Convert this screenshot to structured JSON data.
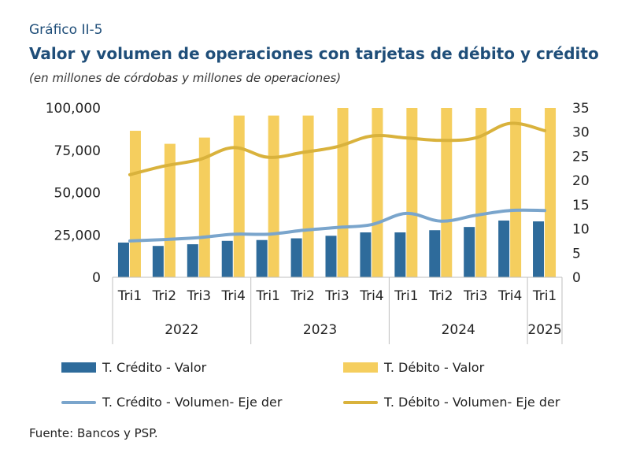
{
  "figure": {
    "label": "Gráfico II-5",
    "title": "Valor y volumen de operaciones con tarjetas de débito y crédito",
    "subtitle": "(en millones de córdobas y millones de operaciones)",
    "source": "Fuente: Bancos y PSP."
  },
  "colors": {
    "credito_valor": "#2e6b9b",
    "debito_valor": "#f5ce5e",
    "credito_volumen": "#7aa5cc",
    "debito_volumen": "#d9b23c"
  },
  "chart_data": {
    "type": "bar",
    "categories": [
      "Tri1",
      "Tri2",
      "Tri3",
      "Tri4",
      "Tri1",
      "Tri2",
      "Tri3",
      "Tri4",
      "Tri1",
      "Tri2",
      "Tri3",
      "Tri4",
      "Tri1"
    ],
    "years": [
      {
        "label": "2022",
        "start": 0,
        "count": 4
      },
      {
        "label": "2023",
        "start": 4,
        "count": 4
      },
      {
        "label": "2024",
        "start": 8,
        "count": 4
      },
      {
        "label": "2025",
        "start": 12,
        "count": 1
      }
    ],
    "y_left": {
      "ylim": [
        0,
        100000
      ],
      "ticks": [
        "0",
        "25,000",
        "50,000",
        "75,000",
        "100,000"
      ],
      "tick_values": [
        0,
        25000,
        50000,
        75000,
        100000
      ]
    },
    "y_right": {
      "ylim": [
        0,
        35
      ],
      "ticks": [
        "0",
        "5",
        "10",
        "15",
        "20",
        "25",
        "30",
        "35"
      ],
      "tick_values": [
        0,
        5,
        10,
        15,
        20,
        25,
        30,
        35
      ]
    },
    "series": [
      {
        "name": "T. Crédito - Valor",
        "kind": "bar",
        "axis": "left",
        "color_key": "credito_valor",
        "values": [
          20500,
          18500,
          19500,
          21500,
          22000,
          23000,
          24500,
          26500,
          26500,
          27800,
          29700,
          33500,
          33000
        ]
      },
      {
        "name": "T. Débito - Valor",
        "kind": "bar",
        "axis": "left",
        "color_key": "debito_valor",
        "values": [
          86500,
          78800,
          82500,
          95500,
          95500,
          95500,
          100000,
          100000,
          100000,
          100000,
          100000,
          100000,
          100000
        ]
      },
      {
        "name": "T. Crédito - Volumen- Eje der",
        "kind": "line",
        "axis": "right",
        "color_key": "credito_volumen",
        "values": [
          7.5,
          7.8,
          8.2,
          8.9,
          8.9,
          9.7,
          10.3,
          10.9,
          13.2,
          11.6,
          12.8,
          13.8,
          13.8
        ]
      },
      {
        "name": "T. Débito - Volumen- Eje der",
        "kind": "line",
        "axis": "right",
        "color_key": "debito_volumen",
        "values": [
          21.2,
          23.0,
          24.3,
          26.8,
          24.8,
          25.8,
          27.0,
          29.2,
          28.8,
          28.3,
          28.8,
          31.8,
          30.3
        ]
      }
    ],
    "grid": false,
    "legend_position": "bottom"
  }
}
